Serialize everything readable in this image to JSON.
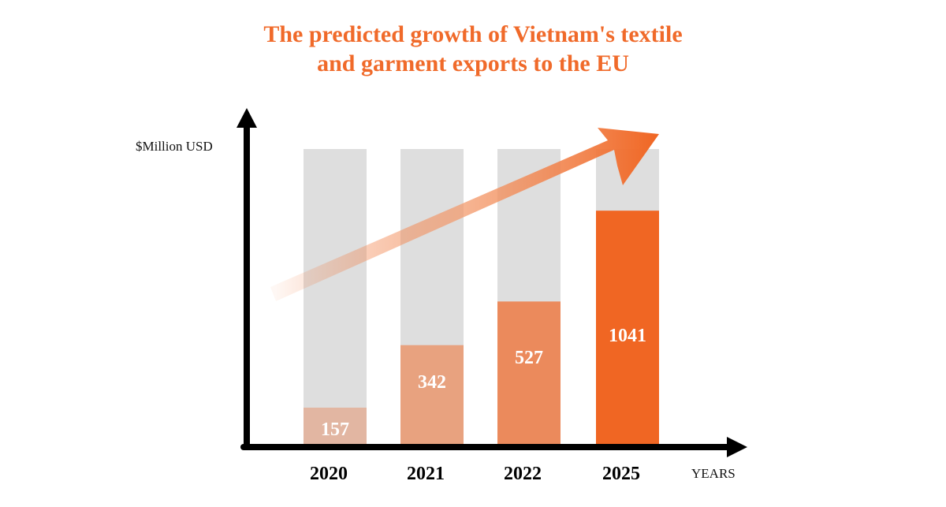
{
  "chart_data": {
    "type": "bar",
    "title_lines": [
      "The predicted growth of Vietnam's textile",
      "and garment exports to the EU"
    ],
    "ylabel": "$Million USD",
    "xlabel": "YEARS",
    "categories": [
      "2020",
      "2021",
      "2022",
      "2025"
    ],
    "values": [
      157,
      342,
      527,
      1041
    ],
    "value_labels": [
      "157",
      "342",
      "527",
      "1041"
    ],
    "fill_fraction": [
      0.123,
      0.335,
      0.483,
      0.791
    ],
    "colors": [
      "#e2b6a2",
      "#e8a27f",
      "#eb8a5c",
      "#f06623"
    ],
    "background_color": "#dedede",
    "title_color": "#f06a2a",
    "trend_arrow": true
  }
}
